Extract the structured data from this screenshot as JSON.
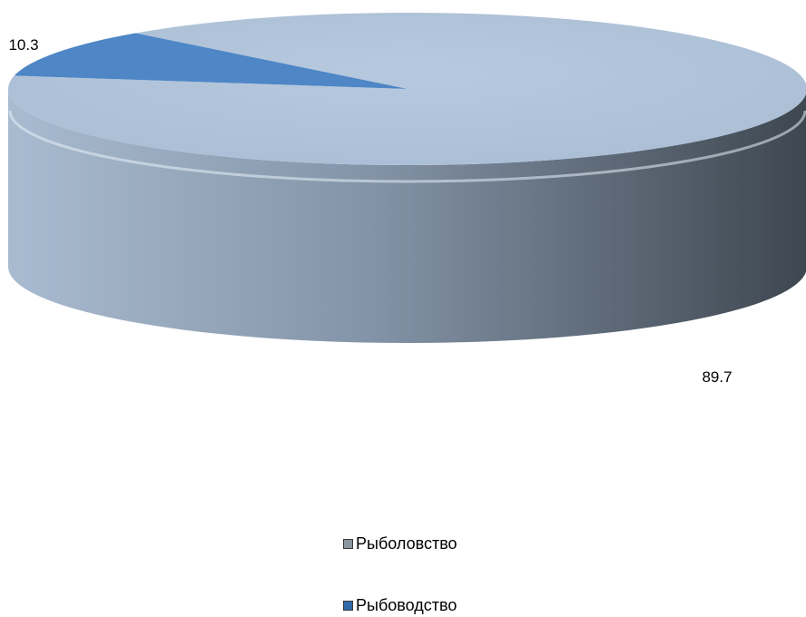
{
  "chart_data": {
    "type": "pie",
    "style": "3d",
    "title": "",
    "slices": [
      {
        "label": "Рыболовство",
        "value": 89.7,
        "value_label": "89.7",
        "color": "#b3c6dc",
        "legend_swatch": "#8a949e"
      },
      {
        "label": "Рыбоводство",
        "value": 10.3,
        "value_label": "10.3",
        "color": "#4e86c6",
        "legend_swatch": "#2f68a8"
      }
    ],
    "legend_position": "bottom"
  }
}
